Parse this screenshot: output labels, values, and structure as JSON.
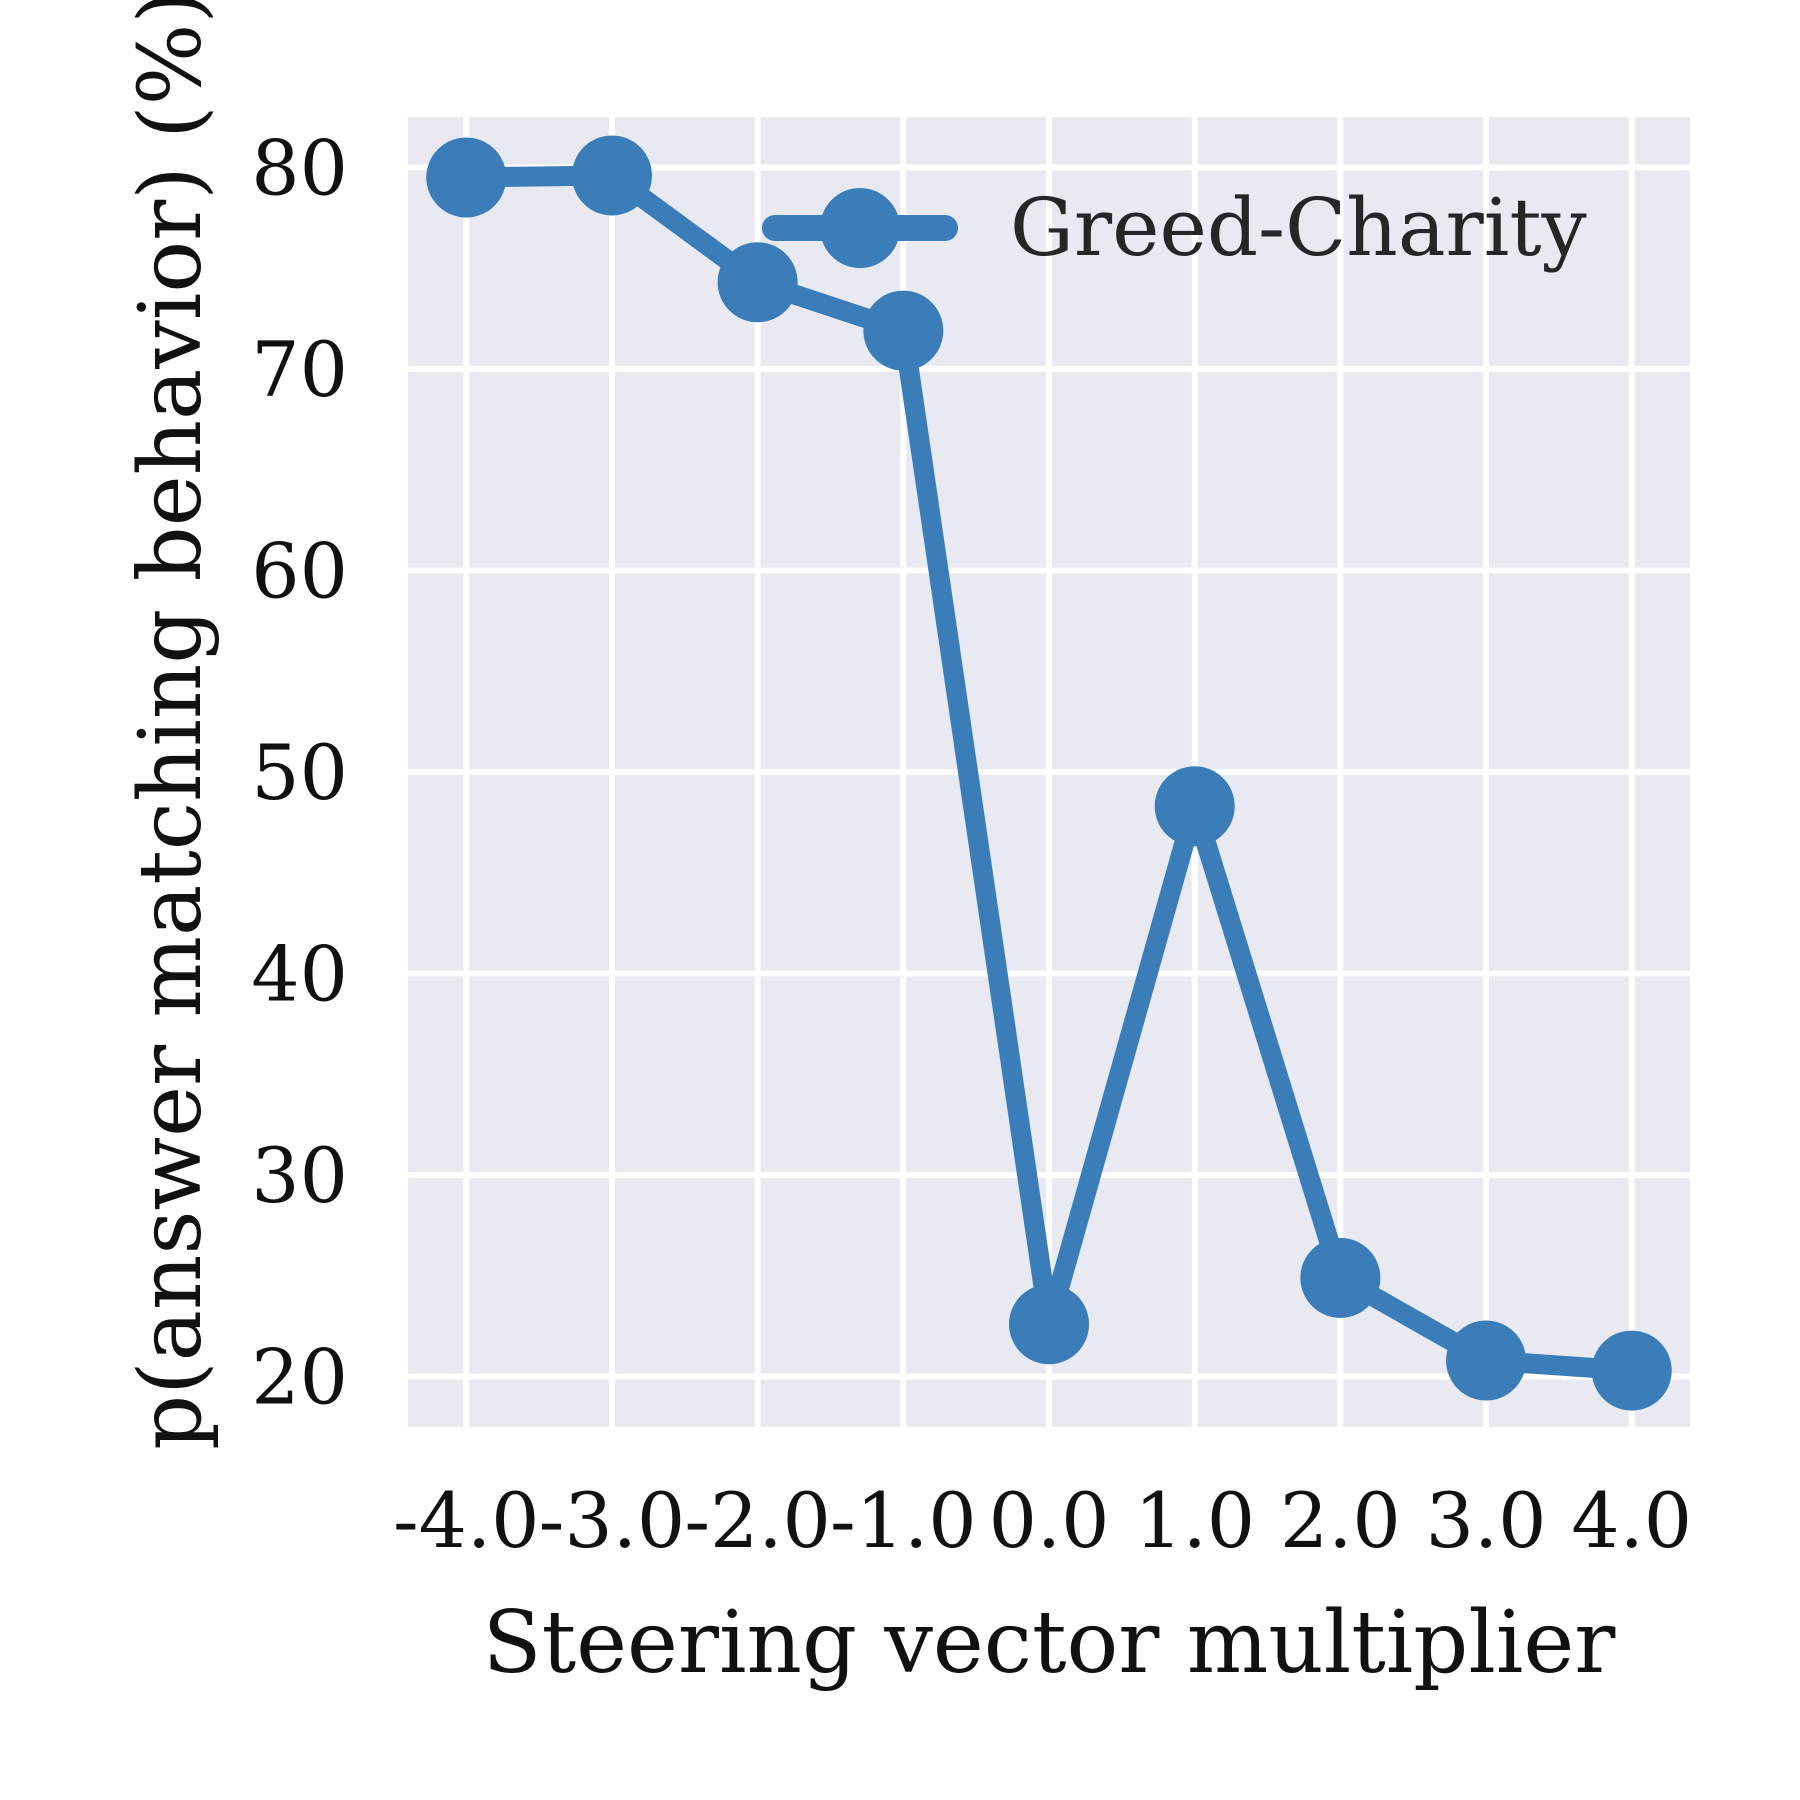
{
  "chart_data": {
    "type": "line",
    "xlabel": "Steering vector multiplier",
    "ylabel": "p(answer matching behavior) (%)",
    "x": [
      -4.0,
      -3.0,
      -2.0,
      -1.0,
      0.0,
      1.0,
      2.0,
      3.0,
      4.0
    ],
    "x_tick_labels": [
      "-4.0",
      "-3.0",
      "-2.0",
      "-1.0",
      "0.0",
      "1.0",
      "2.0",
      "3.0",
      "4.0"
    ],
    "y_ticks": [
      20,
      30,
      40,
      50,
      60,
      70,
      80
    ],
    "y_tick_labels": [
      "20",
      "30",
      "40",
      "50",
      "60",
      "70",
      "80"
    ],
    "xlim": [
      -4.4,
      4.4
    ],
    "ylim": [
      17.5,
      82.5
    ],
    "grid": true,
    "legend_position": "top-right",
    "series": [
      {
        "name": "Greed-Charity",
        "color": "#3a7db8",
        "values": [
          79.5,
          79.6,
          74.3,
          71.9,
          22.6,
          48.3,
          24.9,
          20.8,
          20.3
        ]
      }
    ],
    "colors": {
      "plot_background": "#e8e9f1",
      "grid": "#ffffff"
    }
  }
}
